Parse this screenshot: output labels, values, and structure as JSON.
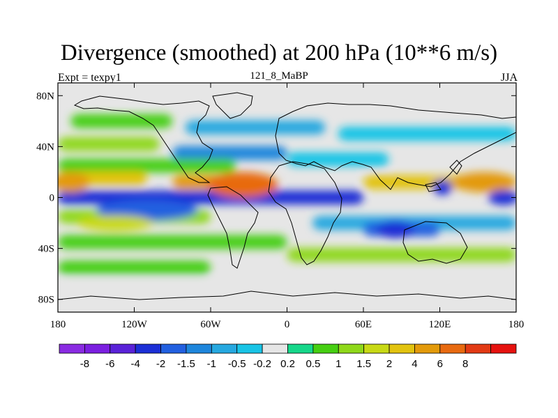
{
  "title": "Divergence (smoothed) at 200 hPa (10**6 m/s)",
  "left_label": "Expt = texpy1",
  "center_label": "121_8_MaBP",
  "right_label": "JJA",
  "map": {
    "lon_range": [
      -180,
      180
    ],
    "lat_range": [
      -90,
      90
    ],
    "background_color": "#e6e6e6",
    "x_ticks": [
      {
        "value": -180,
        "label": "180"
      },
      {
        "value": -120,
        "label": "120W"
      },
      {
        "value": -60,
        "label": "60W"
      },
      {
        "value": 0,
        "label": "0"
      },
      {
        "value": 60,
        "label": "60E"
      },
      {
        "value": 120,
        "label": "120E"
      },
      {
        "value": 180,
        "label": "180"
      }
    ],
    "y_ticks": [
      {
        "value": 80,
        "label": "80N"
      },
      {
        "value": 40,
        "label": "40N"
      },
      {
        "value": 0,
        "label": "0"
      },
      {
        "value": -40,
        "label": "40S"
      },
      {
        "value": -80,
        "label": "80S"
      }
    ]
  },
  "colorbar": {
    "colors": [
      "#8a2be2",
      "#7b1fe0",
      "#5a22d8",
      "#1c2fd6",
      "#2260e0",
      "#1e86dc",
      "#26a8e0",
      "#19c4e6",
      "#e6e6e6",
      "#16d78a",
      "#46cf12",
      "#8fd81a",
      "#c8d915",
      "#e2c30f",
      "#e39a0a",
      "#e86a10",
      "#e23a14",
      "#e6120f"
    ],
    "labels": [
      "-8",
      "-6",
      "-4",
      "-2",
      "-1.5",
      "-1",
      "-0.5",
      "-0.2",
      "0.2",
      "0.5",
      "1",
      "1.5",
      "2",
      "4",
      "6",
      "8"
    ]
  },
  "field_bands": [
    {
      "lat": 85,
      "lon_start": -180,
      "lon_end": 180,
      "value": 0
    },
    {
      "lat": 60,
      "lon_start": -170,
      "lon_end": -90,
      "value": 0.5
    },
    {
      "lat": 55,
      "lon_start": -80,
      "lon_end": 30,
      "value": -1
    },
    {
      "lat": 50,
      "lon_start": 40,
      "lon_end": 180,
      "value": -0.5
    },
    {
      "lat": 42,
      "lon_start": -180,
      "lon_end": -100,
      "value": 1
    },
    {
      "lat": 35,
      "lon_start": -90,
      "lon_end": 0,
      "value": -1.5
    },
    {
      "lat": 30,
      "lon_start": 0,
      "lon_end": 80,
      "value": -0.5
    },
    {
      "lat": 25,
      "lon_start": -180,
      "lon_end": -40,
      "value": 0.5
    },
    {
      "lat": 15,
      "lon_start": -180,
      "lon_end": -110,
      "value": 2
    },
    {
      "lat": 12,
      "lon_start": -90,
      "lon_end": -10,
      "value": 4
    },
    {
      "lat": 12,
      "lon_start": 60,
      "lon_end": 180,
      "value": 2
    },
    {
      "lat": 0,
      "lon_start": -180,
      "lon_end": 60,
      "value": -4
    },
    {
      "lat": -15,
      "lon_start": -180,
      "lon_end": -60,
      "value": 1
    },
    {
      "lat": -20,
      "lon_start": 20,
      "lon_end": 180,
      "value": -1
    },
    {
      "lat": -25,
      "lon_start": 60,
      "lon_end": 120,
      "value": -2
    },
    {
      "lat": -35,
      "lon_start": -180,
      "lon_end": 0,
      "value": 0.5
    },
    {
      "lat": -45,
      "lon_start": 0,
      "lon_end": 180,
      "value": 1
    },
    {
      "lat": -55,
      "lon_start": -180,
      "lon_end": -60,
      "value": 0.5
    },
    {
      "lat": -70,
      "lon_start": -180,
      "lon_end": 180,
      "value": 0
    }
  ],
  "field_blobs": [
    {
      "lon": -170,
      "lat": 12,
      "rx": 15,
      "ry": 8,
      "value": 4
    },
    {
      "lon": -35,
      "lat": 10,
      "rx": 28,
      "ry": 10,
      "value": 6
    },
    {
      "lon": 155,
      "lat": 12,
      "rx": 25,
      "ry": 8,
      "value": 4
    },
    {
      "lon": 122,
      "lat": 8,
      "rx": 8,
      "ry": 6,
      "value": -4
    },
    {
      "lon": -110,
      "lat": -10,
      "rx": 40,
      "ry": 8,
      "value": -2
    },
    {
      "lon": 85,
      "lat": -25,
      "rx": 15,
      "ry": 7,
      "value": -4
    },
    {
      "lon": 170,
      "lat": 0,
      "rx": 12,
      "ry": 6,
      "value": -4
    },
    {
      "lon": -135,
      "lat": -20,
      "rx": 30,
      "ry": 6,
      "value": 1.5
    }
  ]
}
